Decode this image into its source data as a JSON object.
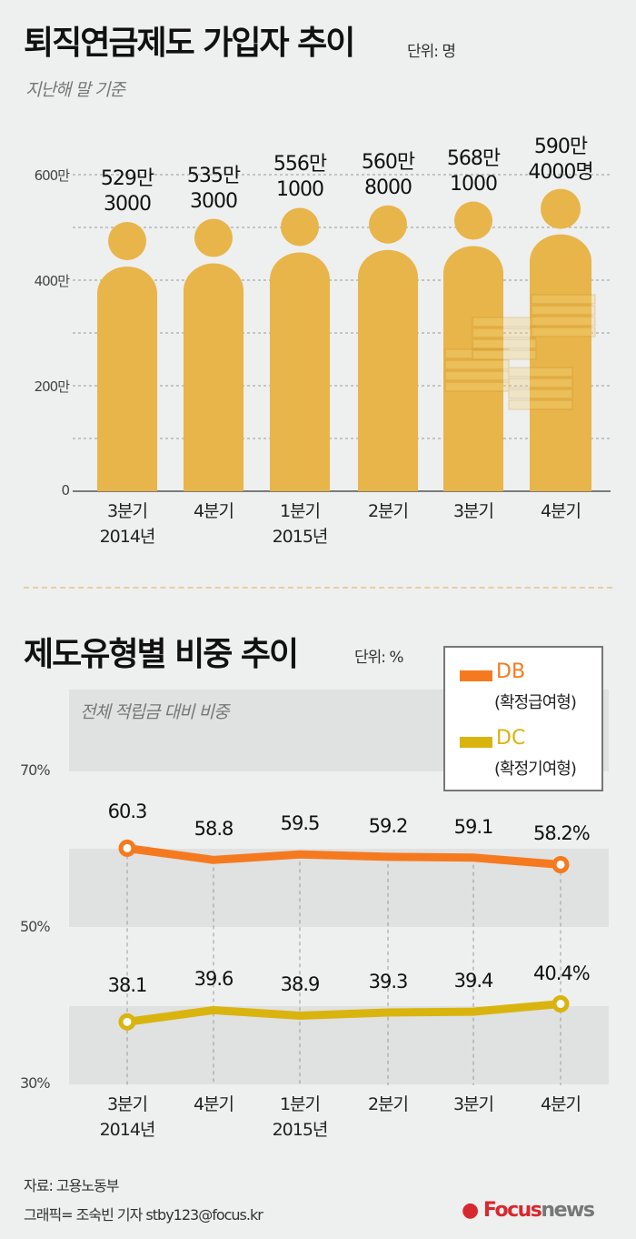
{
  "chart_data": [
    {
      "type": "bar",
      "title": "퇴직연금제도 가입자 추이",
      "unit": "단위: 명",
      "subtitle": "지난해 말 기준",
      "categories": [
        [
          "3분기",
          "2014년"
        ],
        [
          "4분기",
          ""
        ],
        [
          "1분기",
          "2015년"
        ],
        [
          "2분기",
          ""
        ],
        [
          "3분기",
          ""
        ],
        [
          "4분기",
          ""
        ]
      ],
      "values": [
        5293000,
        5353000,
        5561000,
        5608000,
        5681000,
        5904000
      ],
      "value_labels": [
        [
          "529만",
          "3000"
        ],
        [
          "535만",
          "3000"
        ],
        [
          "556만",
          "1000"
        ],
        [
          "560만",
          "8000"
        ],
        [
          "568만",
          "1000"
        ],
        [
          "590만",
          "4000명"
        ]
      ],
      "yticks": [
        "0",
        "200만",
        "400만",
        "600만"
      ],
      "ylim": [
        0,
        6000000
      ],
      "grid": true,
      "bar_color": "#e8b54a"
    },
    {
      "type": "line",
      "title": "제도유형별 비중 추이",
      "unit": "단위: %",
      "subtitle": "전체 적립금 대비 비중",
      "categories": [
        [
          "3분기",
          "2014년"
        ],
        [
          "4분기",
          ""
        ],
        [
          "1분기",
          "2015년"
        ],
        [
          "2분기",
          ""
        ],
        [
          "3분기",
          ""
        ],
        [
          "4분기",
          ""
        ]
      ],
      "yticks": [
        "30%",
        "50%",
        "70%"
      ],
      "ylim": [
        30,
        70
      ],
      "legend_position": "top-right",
      "series": [
        {
          "name": "DB",
          "desc": "(확정급여형)",
          "color": "#f57a1f",
          "values": [
            60.3,
            58.8,
            59.5,
            59.2,
            59.1,
            58.2
          ],
          "labels": [
            "60.3",
            "58.8",
            "59.5",
            "59.2",
            "59.1",
            "58.2%"
          ]
        },
        {
          "name": "DC",
          "desc": "(확정기여형)",
          "color": "#d9b40e",
          "values": [
            38.1,
            39.6,
            38.9,
            39.3,
            39.4,
            40.4
          ],
          "labels": [
            "38.1",
            "39.6",
            "38.9",
            "39.3",
            "39.4",
            "40.4%"
          ]
        }
      ]
    }
  ],
  "footer": {
    "source": "자료: 고용노동부",
    "credit": "그래픽= 조숙빈 기자 stby123@focus.kr",
    "logo": "Focus news",
    "logo_color": "#d8282f"
  }
}
